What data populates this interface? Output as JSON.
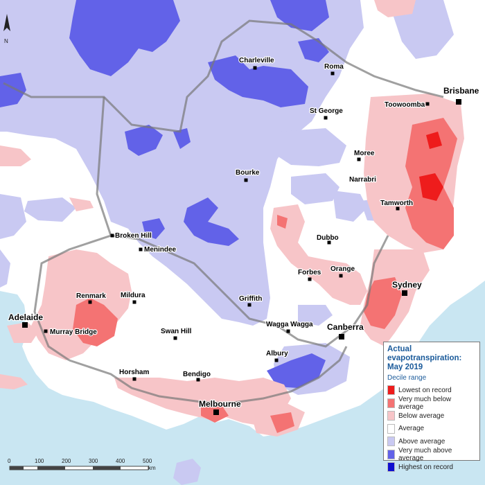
{
  "colors": {
    "ocean": "#c9e6f2",
    "lowest": "#ee1c1c",
    "very_below": "#f47373",
    "below": "#f7c5c8",
    "average": "#ffffff",
    "above": "#c9c9f2",
    "very_above": "#6262e8",
    "highest": "#1010d0"
  },
  "places": [
    {
      "name": "Charleville"
    },
    {
      "name": "Roma"
    },
    {
      "name": "Toowoomba"
    },
    {
      "name": "Brisbane"
    },
    {
      "name": "St George"
    },
    {
      "name": "Moree"
    },
    {
      "name": "Narrabri"
    },
    {
      "name": "Bourke"
    },
    {
      "name": "Tamworth"
    },
    {
      "name": "Broken Hill"
    },
    {
      "name": "Menindee"
    },
    {
      "name": "Dubbo"
    },
    {
      "name": "Orange"
    },
    {
      "name": "Forbes"
    },
    {
      "name": "Sydney"
    },
    {
      "name": "Mildura"
    },
    {
      "name": "Renmark"
    },
    {
      "name": "Griffith"
    },
    {
      "name": "Adelaide"
    },
    {
      "name": "Murray Bridge"
    },
    {
      "name": "Swan Hill"
    },
    {
      "name": "Wagga Wagga"
    },
    {
      "name": "Canberra"
    },
    {
      "name": "Albury"
    },
    {
      "name": "Horsham"
    },
    {
      "name": "Bendigo"
    },
    {
      "name": "Melbourne"
    }
  ],
  "legend": {
    "title": "Actual evapotranspiration: May 2019",
    "subtitle": "Decile range",
    "items": [
      {
        "label": "Lowest on record",
        "color": "#ee1c1c"
      },
      {
        "label": "Very much below average",
        "color": "#f47373"
      },
      {
        "label": "Below average",
        "color": "#f7c5c8"
      },
      {
        "label": "Average",
        "color": "#ffffff"
      },
      {
        "label": "Above average",
        "color": "#c9c9f2"
      },
      {
        "label": "Very much above average",
        "color": "#6262e8"
      },
      {
        "label": "Highest on record",
        "color": "#1010d0"
      }
    ]
  },
  "scale": {
    "ticks": [
      "0",
      "100",
      "200",
      "300",
      "400",
      "500"
    ],
    "unit": "km"
  },
  "north_label": "N"
}
